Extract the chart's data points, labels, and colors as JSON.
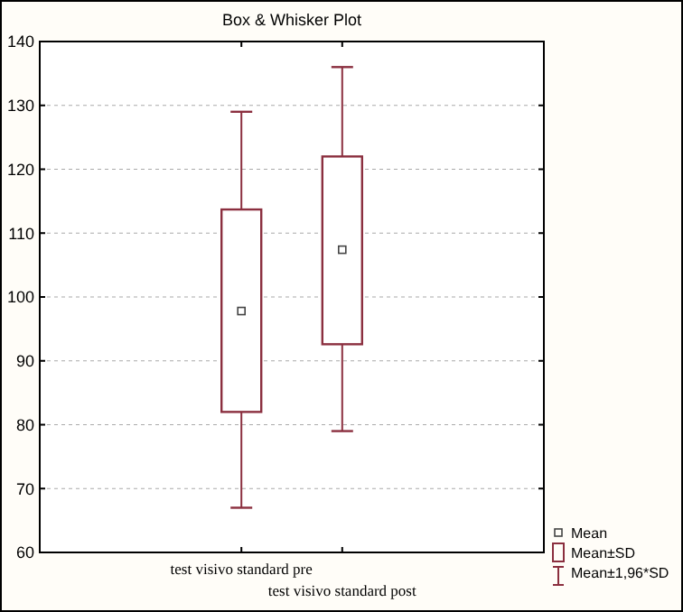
{
  "chart_data": {
    "type": "box",
    "title": "Box & Whisker Plot",
    "categories": [
      "test visivo standard pre",
      "test visivo standard post"
    ],
    "boxes": [
      {
        "low": 67,
        "q1": 82,
        "q3": 113.7,
        "high": 129,
        "mean": 97.8
      },
      {
        "low": 79,
        "q1": 92.6,
        "q3": 122,
        "high": 136,
        "mean": 107.4
      }
    ],
    "color": "#8b2f3f",
    "ylim": [
      60,
      140
    ],
    "yticks": [
      60,
      70,
      80,
      90,
      100,
      110,
      120,
      130,
      140
    ],
    "grid": "y",
    "annotations": [
      "Mean",
      "Mean±SD",
      "Mean±1,96*SD"
    ]
  }
}
